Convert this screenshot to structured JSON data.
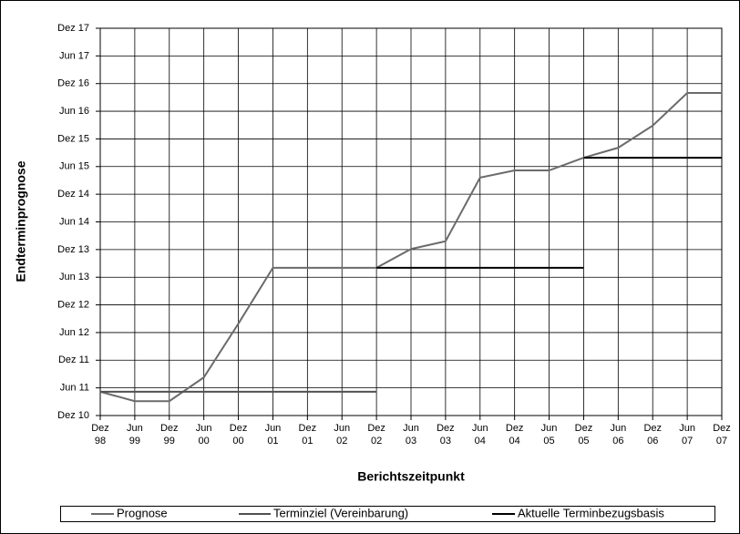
{
  "chart_data": {
    "type": "line",
    "y_label": "Endterminprognose",
    "x_label": "Berichtszeitpunkt",
    "xlim": [
      1999,
      2008
    ],
    "xticks": [
      {
        "value": 1999,
        "label": "Dez 98"
      },
      {
        "value": 1999.5,
        "label": "Jun 99"
      },
      {
        "value": 2000,
        "label": "Dez 99"
      },
      {
        "value": 2000.5,
        "label": "Jun 00"
      },
      {
        "value": 2001,
        "label": "Dez 00"
      },
      {
        "value": 2001.5,
        "label": "Jun 01"
      },
      {
        "value": 2002,
        "label": "Dez 01"
      },
      {
        "value": 2002.5,
        "label": "Jun 02"
      },
      {
        "value": 2003,
        "label": "Dez 02"
      },
      {
        "value": 2003.5,
        "label": "Jun 03"
      },
      {
        "value": 2004,
        "label": "Dez 03"
      },
      {
        "value": 2004.5,
        "label": "Jun 04"
      },
      {
        "value": 2005,
        "label": "Dez 04"
      },
      {
        "value": 2005.5,
        "label": "Jun 05"
      },
      {
        "value": 2006,
        "label": "Dez 05"
      },
      {
        "value": 2006.5,
        "label": "Jun 06"
      },
      {
        "value": 2007,
        "label": "Dez 06"
      },
      {
        "value": 2007.5,
        "label": "Jun 07"
      },
      {
        "value": 2008,
        "label": "Dez 07"
      }
    ],
    "ylim": [
      2011,
      2018
    ],
    "yticks": [
      {
        "value": 2011,
        "label": "Dez 10"
      },
      {
        "value": 2011.5,
        "label": "Jun 11"
      },
      {
        "value": 2012,
        "label": "Dez 11"
      },
      {
        "value": 2012.5,
        "label": "Jun 12"
      },
      {
        "value": 2013,
        "label": "Dez 12"
      },
      {
        "value": 2013.5,
        "label": "Jun 13"
      },
      {
        "value": 2014,
        "label": "Dez 13"
      },
      {
        "value": 2014.5,
        "label": "Jun 14"
      },
      {
        "value": 2015,
        "label": "Dez 14"
      },
      {
        "value": 2015.5,
        "label": "Jun 15"
      },
      {
        "value": 2016,
        "label": "Dez 15"
      },
      {
        "value": 2016.5,
        "label": "Jun 16"
      },
      {
        "value": 2017,
        "label": "Dez 16"
      },
      {
        "value": 2017.5,
        "label": "Jun 17"
      },
      {
        "value": 2018,
        "label": "Dez 17"
      }
    ],
    "grid": true,
    "legend": "bottom",
    "series": [
      {
        "name": "Prognose",
        "color": "#6b6b6b",
        "x": [
          1999,
          1999.5,
          2000,
          2000.5,
          2001,
          2001.5,
          2002,
          2002.5,
          2003,
          2003.5,
          2004,
          2004.5,
          2005,
          2005.5,
          2006,
          2006.5,
          2007,
          2007.5,
          2008
        ],
        "values": [
          2011.43,
          2011.26,
          2011.26,
          2011.69,
          2012.66,
          2013.67,
          2013.67,
          2013.67,
          2013.67,
          2014.01,
          2014.15,
          2015.3,
          2015.43,
          2015.43,
          2015.66,
          2015.84,
          2016.24,
          2016.83,
          2016.83
        ]
      },
      {
        "name": "Terminziel (Vereinbarung)",
        "color": "#505050",
        "x": [
          1999,
          2003
        ],
        "values": [
          2011.43,
          2011.43
        ]
      },
      {
        "name": "Aktuelle Terminbezugsbasis",
        "color": "#000000",
        "x": [
          2003,
          2006,
          null,
          2006,
          2008
        ],
        "values": [
          2013.67,
          2013.67,
          null,
          2015.66,
          2015.66
        ]
      }
    ]
  }
}
